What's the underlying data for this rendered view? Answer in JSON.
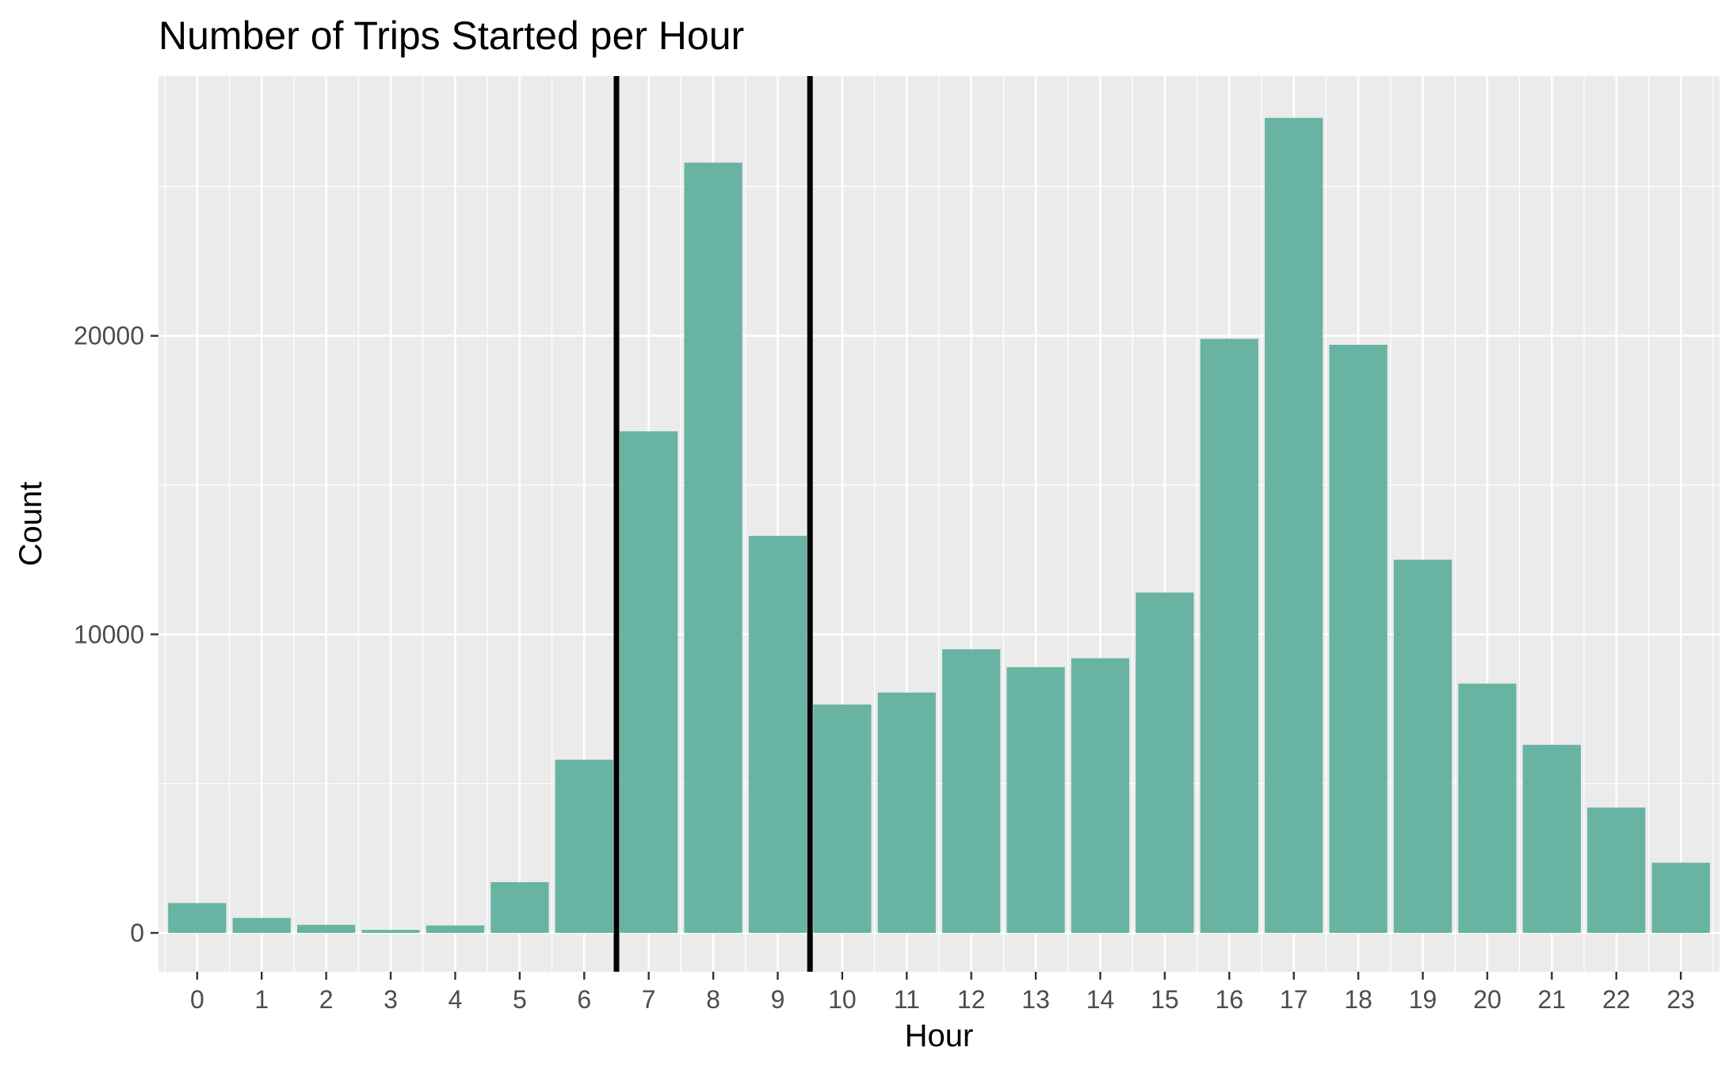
{
  "chart_data": {
    "type": "bar",
    "title": "Number of Trips Started per Hour",
    "xlabel": "Hour",
    "ylabel": "Count",
    "categories": [
      "0",
      "1",
      "2",
      "3",
      "4",
      "5",
      "6",
      "7",
      "8",
      "9",
      "10",
      "11",
      "12",
      "13",
      "14",
      "15",
      "16",
      "17",
      "18",
      "19",
      "20",
      "21",
      "22",
      "23"
    ],
    "values": [
      1000,
      500,
      270,
      100,
      250,
      1700,
      5800,
      16800,
      25800,
      13300,
      7650,
      8050,
      9500,
      8900,
      9200,
      11400,
      19900,
      27300,
      19700,
      12500,
      8350,
      6300,
      4200,
      2350
    ],
    "y_ticks": [
      "0",
      "10000",
      "20000"
    ],
    "ylim": [
      -1300,
      28700
    ],
    "grid": true,
    "vertical_lines_at_hours": [
      6.5,
      9.5
    ],
    "colors": {
      "bar": "#69b3a2",
      "panel": "#ebebeb",
      "grid_major": "#ffffff",
      "vline": "#000000"
    }
  }
}
